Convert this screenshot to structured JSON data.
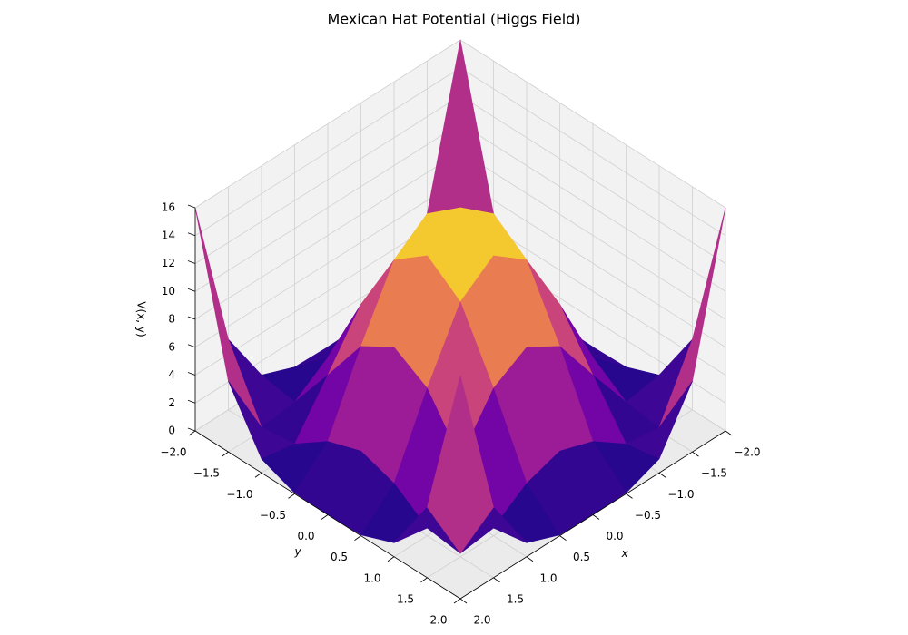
{
  "chart_data": {
    "type": "surface",
    "title": "Mexican Hat Potential (Higgs Field)",
    "x_label": "x",
    "y_label": "y",
    "z_label": "V(x, y)",
    "colormap": "plasma",
    "x": [
      -2,
      -1.5,
      -1,
      -0.5,
      0,
      0.5,
      1,
      1.5,
      2
    ],
    "y": [
      -2,
      -1.5,
      -1,
      -0.5,
      0,
      0.5,
      1,
      1.5,
      2
    ],
    "z": [
      [
        16,
        5.0625,
        1,
        0.0625,
        0,
        0.0625,
        1,
        5.0625,
        16
      ],
      [
        5.0625,
        0.25,
        0.5625,
        2.25,
        3.0625,
        2.25,
        0.5625,
        0.25,
        5.0625
      ],
      [
        1,
        0.5625,
        4,
        7.5625,
        9,
        7.5625,
        4,
        0.5625,
        1
      ],
      [
        0.0625,
        2.25,
        7.5625,
        12.25,
        14.0625,
        12.25,
        7.5625,
        2.25,
        0.0625
      ],
      [
        0,
        3.0625,
        9,
        14.0625,
        16,
        14.0625,
        9,
        3.0625,
        0
      ],
      [
        0.0625,
        2.25,
        7.5625,
        12.25,
        14.0625,
        12.25,
        7.5625,
        2.25,
        0.0625
      ],
      [
        1,
        0.5625,
        4,
        7.5625,
        9,
        7.5625,
        4,
        0.5625,
        1
      ],
      [
        5.0625,
        0.25,
        0.5625,
        2.25,
        3.0625,
        2.25,
        0.5625,
        0.25,
        5.0625
      ],
      [
        16,
        5.0625,
        1,
        0.0625,
        0,
        0.0625,
        1,
        5.0625,
        16
      ]
    ],
    "xlim": [
      -2,
      2
    ],
    "ylim": [
      -2,
      2
    ],
    "zlim": [
      0,
      16
    ],
    "xticks": [
      {
        "value": -2,
        "label": "−2.0"
      },
      {
        "value": -1.5,
        "label": "−1.5"
      },
      {
        "value": -1,
        "label": "−1.0"
      },
      {
        "value": -0.5,
        "label": "−0.5"
      },
      {
        "value": 0,
        "label": "0.0"
      },
      {
        "value": 0.5,
        "label": "0.5"
      },
      {
        "value": 1,
        "label": "1.0"
      },
      {
        "value": 1.5,
        "label": "1.5"
      },
      {
        "value": 2,
        "label": "2.0"
      }
    ],
    "yticks": [
      {
        "value": -2,
        "label": "−2.0"
      },
      {
        "value": -1.5,
        "label": "−1.5"
      },
      {
        "value": -1,
        "label": "−1.0"
      },
      {
        "value": -0.5,
        "label": "−0.5"
      },
      {
        "value": 0,
        "label": "0.0"
      },
      {
        "value": 0.5,
        "label": "0.5"
      },
      {
        "value": 1,
        "label": "1.0"
      },
      {
        "value": 1.5,
        "label": "1.5"
      },
      {
        "value": 2,
        "label": "2.0"
      }
    ],
    "zticks": [
      0,
      2,
      4,
      6,
      8,
      10,
      12,
      14,
      16
    ],
    "grid": true
  }
}
